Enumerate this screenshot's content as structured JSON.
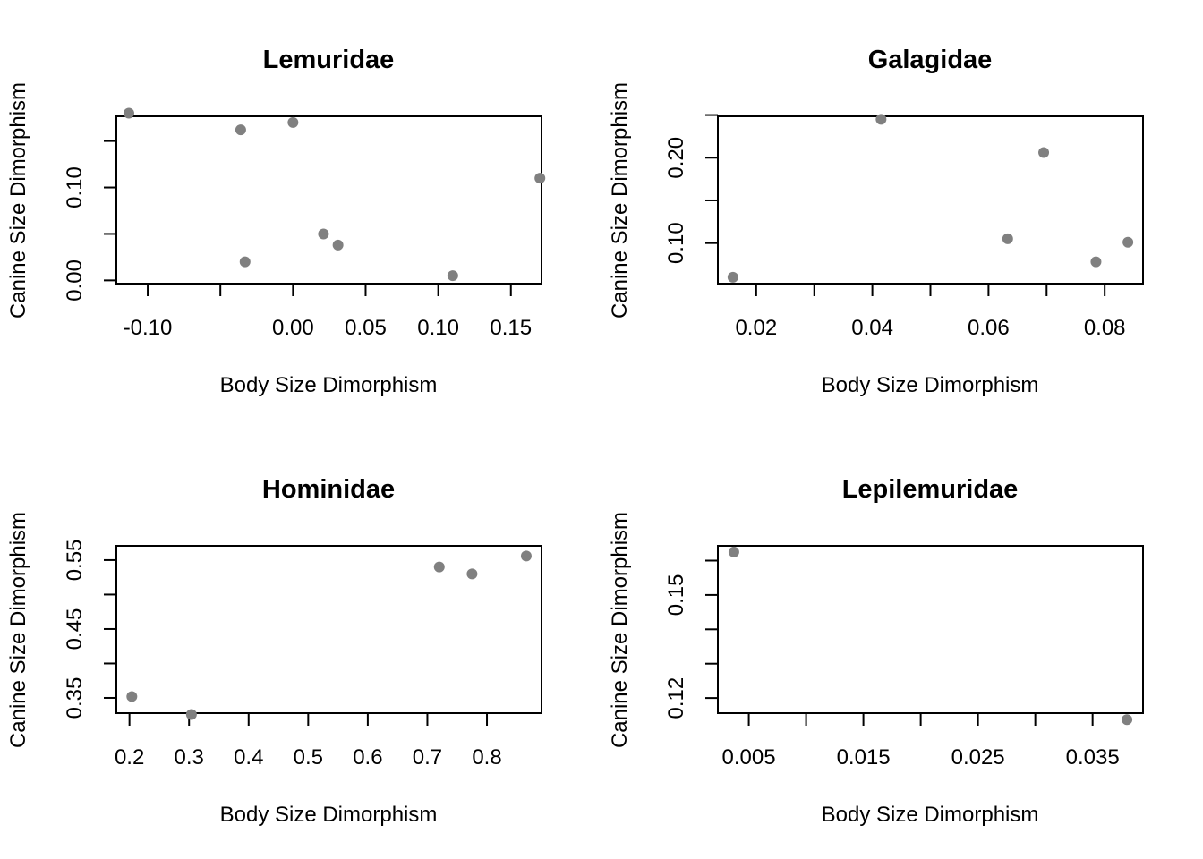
{
  "chart_data": [
    {
      "type": "scatter",
      "title": "Lemuridae",
      "xlabel": "Body Size Dimorphism",
      "ylabel": "Canine Size Dimorphism",
      "xlim": [
        -0.1216,
        0.1711
      ],
      "ylim": [
        -0.0035,
        0.1766
      ],
      "xticks": [
        -0.1,
        -0.05,
        0.0,
        0.05,
        0.1,
        0.15
      ],
      "xtick_labels": [
        "-0.10",
        "",
        "0.00",
        "0.05",
        "0.10",
        "0.15"
      ],
      "yticks": [
        0.0,
        0.05,
        0.1,
        0.15
      ],
      "ytick_labels": [
        "0.00",
        "",
        "0.10",
        ""
      ],
      "x": [
        -0.113,
        -0.036,
        0.0,
        -0.033,
        0.021,
        0.031,
        0.11,
        0.17
      ],
      "y": [
        0.18,
        0.162,
        0.17,
        0.02,
        0.05,
        0.038,
        0.005,
        0.11
      ],
      "marker_color": "#808080",
      "grid": false
    },
    {
      "type": "scatter",
      "title": "Galagidae",
      "xlabel": "Body Size Dimorphism",
      "ylabel": "Canine Size Dimorphism",
      "xlim": [
        0.0134,
        0.0866
      ],
      "ylim": [
        0.0525,
        0.2485
      ],
      "xticks": [
        0.02,
        0.03,
        0.04,
        0.05,
        0.06,
        0.07,
        0.08
      ],
      "xtick_labels": [
        "0.02",
        "",
        "0.04",
        "",
        "0.06",
        "",
        "0.08"
      ],
      "yticks": [
        0.1,
        0.15,
        0.2,
        0.25
      ],
      "ytick_labels": [
        "0.10",
        "",
        "0.20",
        ""
      ],
      "x": [
        0.016,
        0.0415,
        0.0633,
        0.0695,
        0.0785,
        0.084
      ],
      "y": [
        0.06,
        0.245,
        0.105,
        0.206,
        0.078,
        0.101
      ],
      "marker_color": "#808080",
      "grid": false
    },
    {
      "type": "scatter",
      "title": "Hominidae",
      "xlabel": "Body Size Dimorphism",
      "ylabel": "Canine Size Dimorphism",
      "xlim": [
        0.178,
        0.8916
      ],
      "ylim": [
        0.3279,
        0.5707
      ],
      "xticks": [
        0.2,
        0.3,
        0.4,
        0.5,
        0.6,
        0.7,
        0.8
      ],
      "xtick_labels": [
        "0.2",
        "0.3",
        "0.4",
        "0.5",
        "0.6",
        "0.7",
        "0.8"
      ],
      "yticks": [
        0.35,
        0.4,
        0.45,
        0.5,
        0.55
      ],
      "ytick_labels": [
        "0.35",
        "",
        "0.45",
        "",
        "0.55"
      ],
      "x": [
        0.204,
        0.304,
        0.72,
        0.775,
        0.866
      ],
      "y": [
        0.352,
        0.326,
        0.54,
        0.53,
        0.556
      ],
      "marker_color": "#808080",
      "grid": false
    },
    {
      "type": "scatter",
      "title": "Lepilemuridae",
      "xlabel": "Body Size Dimorphism",
      "ylabel": "Canine Size Dimorphism",
      "xlim": [
        0.0023,
        0.0394
      ],
      "ylim": [
        0.1156,
        0.1643
      ],
      "xticks": [
        0.005,
        0.01,
        0.015,
        0.02,
        0.025,
        0.03,
        0.035
      ],
      "xtick_labels": [
        "0.005",
        "",
        "0.015",
        "",
        "0.025",
        "",
        "0.035"
      ],
      "yticks": [
        0.12,
        0.13,
        0.14,
        0.15,
        0.16
      ],
      "ytick_labels": [
        "0.12",
        "",
        "",
        "0.15",
        ""
      ],
      "x": [
        0.0037,
        0.038
      ],
      "y": [
        0.1625,
        0.1137
      ],
      "marker_color": "#808080",
      "grid": false
    }
  ]
}
